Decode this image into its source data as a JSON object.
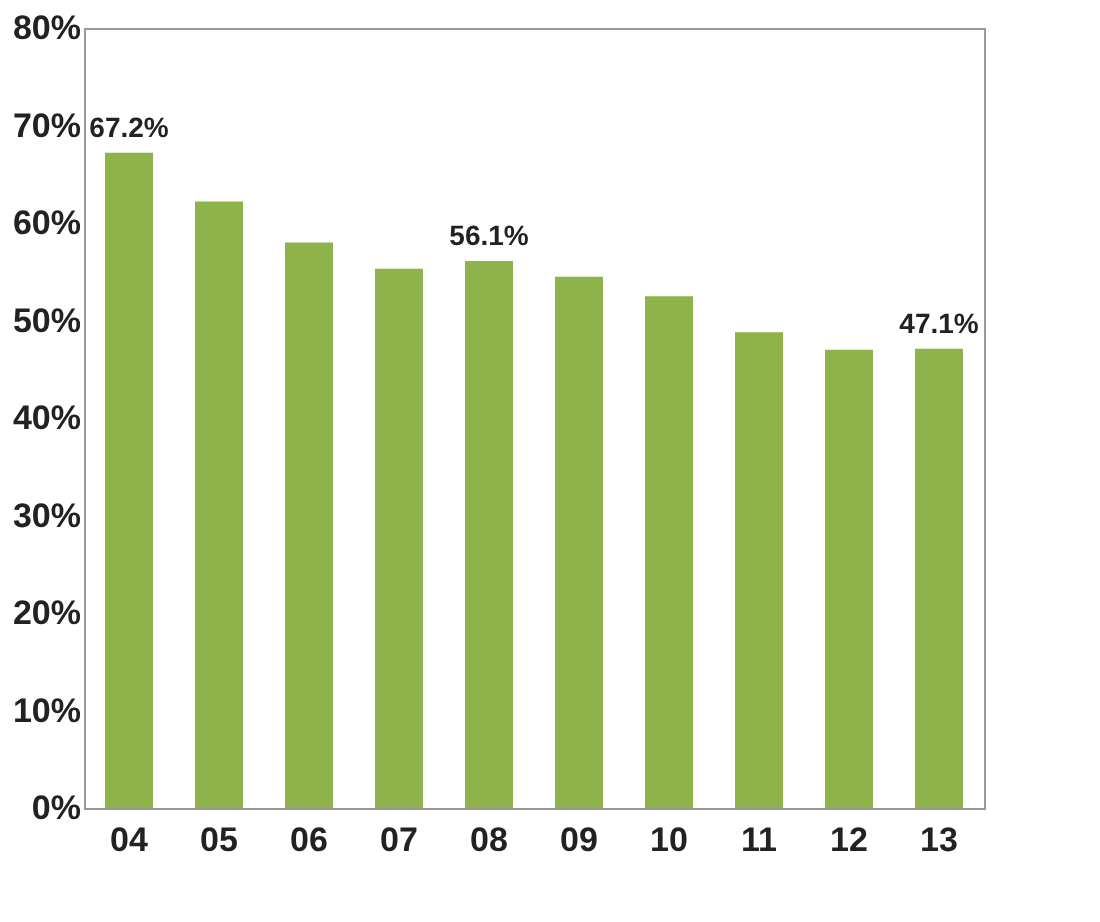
{
  "chart_data": {
    "type": "bar",
    "categories": [
      "04",
      "05",
      "06",
      "07",
      "08",
      "09",
      "10",
      "11",
      "12",
      "13"
    ],
    "values": [
      67.2,
      62.2,
      58.0,
      55.3,
      56.1,
      54.5,
      52.5,
      48.8,
      47.0,
      47.1
    ],
    "value_labels": [
      "67.2%",
      null,
      null,
      null,
      "56.1%",
      null,
      null,
      null,
      null,
      "47.1%"
    ],
    "color": "#8db34a",
    "ylim": [
      0,
      80
    ],
    "yticks": [
      {
        "value": 0,
        "label": "0%"
      },
      {
        "value": 10,
        "label": "10%"
      },
      {
        "value": 20,
        "label": "20%"
      },
      {
        "value": 30,
        "label": "30%"
      },
      {
        "value": 40,
        "label": "40%"
      },
      {
        "value": 50,
        "label": "50%"
      },
      {
        "value": 60,
        "label": "60%"
      },
      {
        "value": 70,
        "label": "70%"
      },
      {
        "value": 80,
        "label": "80%"
      }
    ],
    "grid": false
  }
}
